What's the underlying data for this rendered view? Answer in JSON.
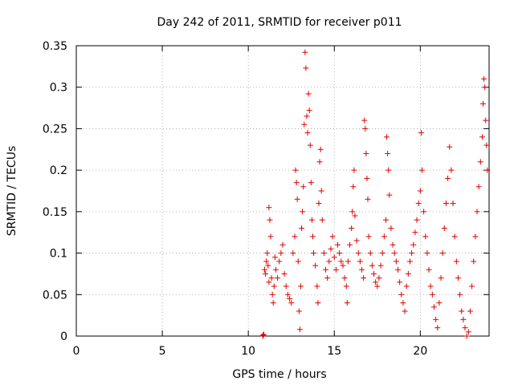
{
  "chart_data": {
    "type": "scatter",
    "title": "Day 242 of 2011, SRMTID for receiver p011",
    "xlabel": "GPS time / hours",
    "ylabel": "SRMTID / TECUs",
    "xlim": [
      0,
      24
    ],
    "ylim": [
      0,
      0.35
    ],
    "x_ticks": [
      0,
      5,
      10,
      15,
      20
    ],
    "x_tick_labels": [
      "0",
      "5",
      "10",
      "15",
      "20"
    ],
    "y_ticks": [
      0,
      0.05,
      0.1,
      0.15,
      0.2,
      0.25,
      0.3,
      0.35
    ],
    "y_tick_labels": [
      "0",
      "0.05",
      "0.1",
      "0.15",
      "0.2",
      "0.25",
      "0.3",
      "0.35"
    ],
    "grid": true,
    "marker": "plus",
    "color": "#dd0000",
    "series": [
      {
        "name": "SRMTID",
        "points": [
          [
            10.85,
            0.0
          ],
          [
            10.85,
            0.001
          ],
          [
            10.9,
            0.002
          ],
          [
            10.95,
            0.08
          ],
          [
            11.0,
            0.075
          ],
          [
            11.05,
            0.09
          ],
          [
            11.1,
            0.1
          ],
          [
            11.15,
            0.085
          ],
          [
            11.2,
            0.065
          ],
          [
            11.2,
            0.155
          ],
          [
            11.25,
            0.14
          ],
          [
            11.3,
            0.12
          ],
          [
            11.35,
            0.07
          ],
          [
            11.4,
            0.05
          ],
          [
            11.45,
            0.04
          ],
          [
            11.5,
            0.06
          ],
          [
            11.55,
            0.095
          ],
          [
            11.6,
            0.08
          ],
          [
            11.7,
            0.07
          ],
          [
            11.8,
            0.09
          ],
          [
            11.9,
            0.1
          ],
          [
            12.0,
            0.11
          ],
          [
            12.1,
            0.075
          ],
          [
            12.2,
            0.06
          ],
          [
            12.3,
            0.05
          ],
          [
            12.4,
            0.045
          ],
          [
            12.5,
            0.04
          ],
          [
            12.6,
            0.1
          ],
          [
            12.7,
            0.12
          ],
          [
            12.75,
            0.2
          ],
          [
            12.8,
            0.185
          ],
          [
            12.85,
            0.165
          ],
          [
            12.9,
            0.09
          ],
          [
            12.95,
            0.03
          ],
          [
            13.0,
            0.008
          ],
          [
            13.05,
            0.06
          ],
          [
            13.1,
            0.13
          ],
          [
            13.15,
            0.15
          ],
          [
            13.2,
            0.18
          ],
          [
            13.25,
            0.255
          ],
          [
            13.3,
            0.342
          ],
          [
            13.35,
            0.323
          ],
          [
            13.4,
            0.265
          ],
          [
            13.45,
            0.245
          ],
          [
            13.5,
            0.292
          ],
          [
            13.55,
            0.272
          ],
          [
            13.6,
            0.23
          ],
          [
            13.65,
            0.185
          ],
          [
            13.7,
            0.14
          ],
          [
            13.75,
            0.12
          ],
          [
            13.8,
            0.1
          ],
          [
            13.9,
            0.085
          ],
          [
            14.0,
            0.06
          ],
          [
            14.05,
            0.04
          ],
          [
            14.1,
            0.16
          ],
          [
            14.15,
            0.21
          ],
          [
            14.2,
            0.225
          ],
          [
            14.25,
            0.175
          ],
          [
            14.3,
            0.14
          ],
          [
            14.4,
            0.1
          ],
          [
            14.5,
            0.08
          ],
          [
            14.6,
            0.07
          ],
          [
            14.7,
            0.09
          ],
          [
            14.8,
            0.105
          ],
          [
            14.9,
            0.12
          ],
          [
            15.0,
            0.095
          ],
          [
            15.1,
            0.08
          ],
          [
            15.2,
            0.11
          ],
          [
            15.3,
            0.1
          ],
          [
            15.4,
            0.09
          ],
          [
            15.5,
            0.085
          ],
          [
            15.6,
            0.07
          ],
          [
            15.7,
            0.06
          ],
          [
            15.75,
            0.04
          ],
          [
            15.8,
            0.09
          ],
          [
            15.9,
            0.11
          ],
          [
            16.0,
            0.13
          ],
          [
            16.05,
            0.15
          ],
          [
            16.1,
            0.18
          ],
          [
            16.15,
            0.2
          ],
          [
            16.2,
            0.145
          ],
          [
            16.3,
            0.115
          ],
          [
            16.4,
            0.1
          ],
          [
            16.5,
            0.09
          ],
          [
            16.6,
            0.08
          ],
          [
            16.7,
            0.07
          ],
          [
            16.75,
            0.26
          ],
          [
            16.8,
            0.25
          ],
          [
            16.85,
            0.22
          ],
          [
            16.9,
            0.19
          ],
          [
            16.95,
            0.165
          ],
          [
            17.0,
            0.12
          ],
          [
            17.1,
            0.1
          ],
          [
            17.2,
            0.085
          ],
          [
            17.3,
            0.075
          ],
          [
            17.4,
            0.065
          ],
          [
            17.5,
            0.06
          ],
          [
            17.6,
            0.07
          ],
          [
            17.7,
            0.085
          ],
          [
            17.8,
            0.1
          ],
          [
            17.9,
            0.12
          ],
          [
            18.0,
            0.14
          ],
          [
            18.05,
            0.24
          ],
          [
            18.1,
            0.22
          ],
          [
            18.15,
            0.2
          ],
          [
            18.2,
            0.17
          ],
          [
            18.3,
            0.13
          ],
          [
            18.4,
            0.11
          ],
          [
            18.5,
            0.1
          ],
          [
            18.6,
            0.09
          ],
          [
            18.7,
            0.08
          ],
          [
            18.8,
            0.065
          ],
          [
            18.9,
            0.05
          ],
          [
            19.0,
            0.04
          ],
          [
            19.1,
            0.03
          ],
          [
            19.2,
            0.06
          ],
          [
            19.3,
            0.075
          ],
          [
            19.4,
            0.09
          ],
          [
            19.5,
            0.1
          ],
          [
            19.6,
            0.11
          ],
          [
            19.7,
            0.125
          ],
          [
            19.8,
            0.14
          ],
          [
            19.9,
            0.16
          ],
          [
            20.0,
            0.175
          ],
          [
            20.05,
            0.245
          ],
          [
            20.1,
            0.2
          ],
          [
            20.2,
            0.15
          ],
          [
            20.3,
            0.12
          ],
          [
            20.4,
            0.1
          ],
          [
            20.5,
            0.08
          ],
          [
            20.6,
            0.06
          ],
          [
            20.7,
            0.05
          ],
          [
            20.8,
            0.035
          ],
          [
            20.9,
            0.02
          ],
          [
            21.0,
            0.01
          ],
          [
            21.1,
            0.04
          ],
          [
            21.2,
            0.07
          ],
          [
            21.3,
            0.1
          ],
          [
            21.4,
            0.13
          ],
          [
            21.5,
            0.16
          ],
          [
            21.6,
            0.19
          ],
          [
            21.7,
            0.228
          ],
          [
            21.8,
            0.2
          ],
          [
            21.9,
            0.16
          ],
          [
            22.0,
            0.12
          ],
          [
            22.1,
            0.09
          ],
          [
            22.2,
            0.07
          ],
          [
            22.3,
            0.05
          ],
          [
            22.4,
            0.03
          ],
          [
            22.5,
            0.02
          ],
          [
            22.6,
            0.01
          ],
          [
            22.7,
            0.0
          ],
          [
            22.8,
            0.005
          ],
          [
            22.9,
            0.03
          ],
          [
            23.0,
            0.06
          ],
          [
            23.1,
            0.09
          ],
          [
            23.2,
            0.12
          ],
          [
            23.3,
            0.15
          ],
          [
            23.4,
            0.18
          ],
          [
            23.5,
            0.21
          ],
          [
            23.6,
            0.24
          ],
          [
            23.65,
            0.28
          ],
          [
            23.7,
            0.31
          ],
          [
            23.75,
            0.3
          ],
          [
            23.8,
            0.26
          ],
          [
            23.85,
            0.23
          ],
          [
            23.9,
            0.2
          ]
        ]
      }
    ]
  }
}
